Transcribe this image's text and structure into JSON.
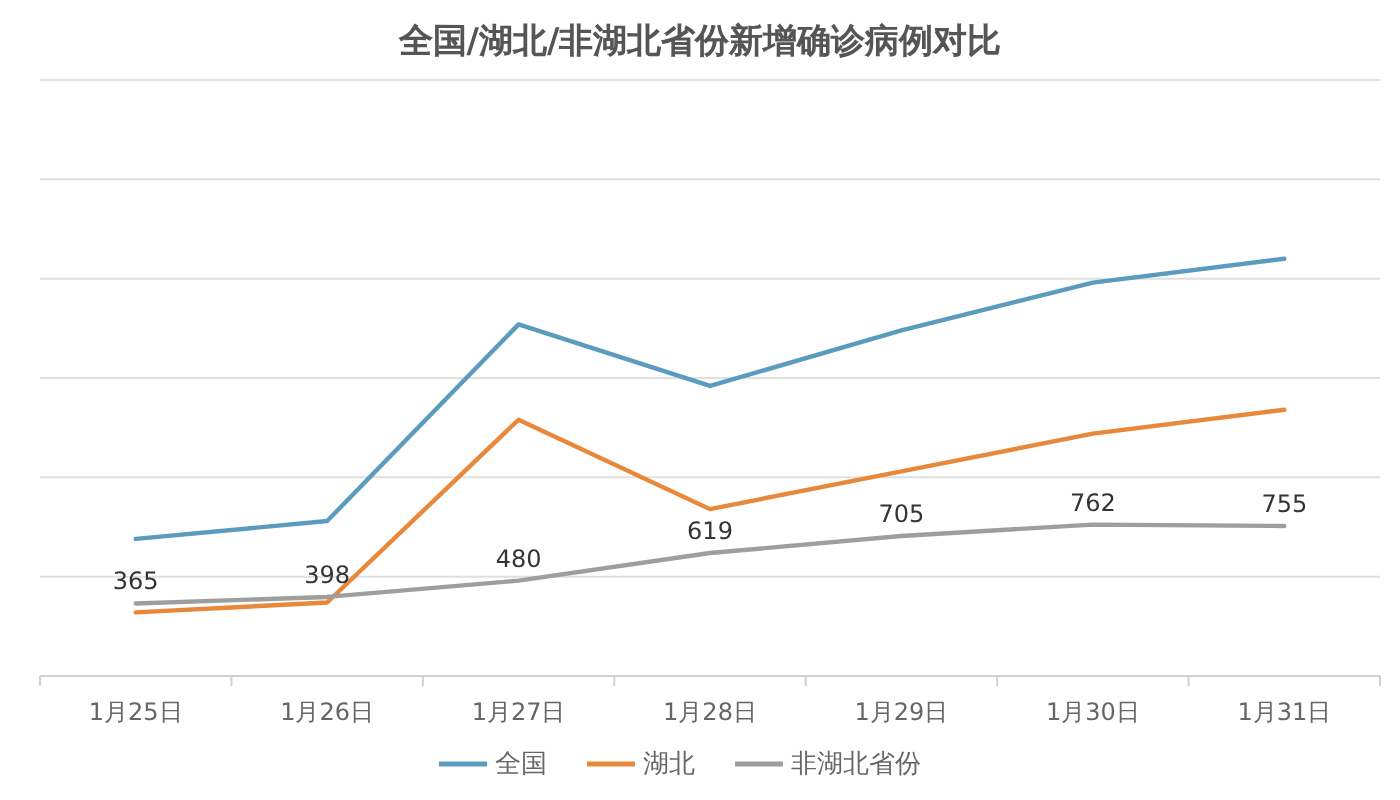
{
  "chart_data": {
    "type": "line",
    "title": "全国/湖北/非湖北省份新增确诊病例对比",
    "categories": [
      "1月25日",
      "1月26日",
      "1月27日",
      "1月28日",
      "1月29日",
      "1月30日",
      "1月31日"
    ],
    "series": [
      {
        "name": "全国",
        "color": "#5b9bbd",
        "values": [
          690,
          780,
          1770,
          1460,
          1740,
          1980,
          2100
        ]
      },
      {
        "name": "湖北",
        "color": "#e8883a",
        "values": [
          320,
          370,
          1290,
          840,
          1030,
          1220,
          1340
        ]
      },
      {
        "name": "非湖北省份",
        "color": "#9e9e9e",
        "values": [
          365,
          398,
          480,
          619,
          705,
          762,
          755
        ],
        "value_labels": [
          "365",
          "398",
          "480",
          "619",
          "705",
          "762",
          "755"
        ]
      }
    ],
    "ylim": [
      0,
      3000
    ],
    "yticks": [
      {
        "value": 0,
        "label": null
      },
      {
        "value": 500,
        "label": null
      },
      {
        "value": 1000,
        "label": null
      },
      {
        "value": 1500,
        "label": null
      },
      {
        "value": 2000,
        "label": null
      },
      {
        "value": 2500,
        "label": null
      },
      {
        "value": 3000,
        "label": null
      }
    ],
    "grid": "y",
    "legend": "bottom",
    "marker": "none",
    "line_style": "solid"
  }
}
